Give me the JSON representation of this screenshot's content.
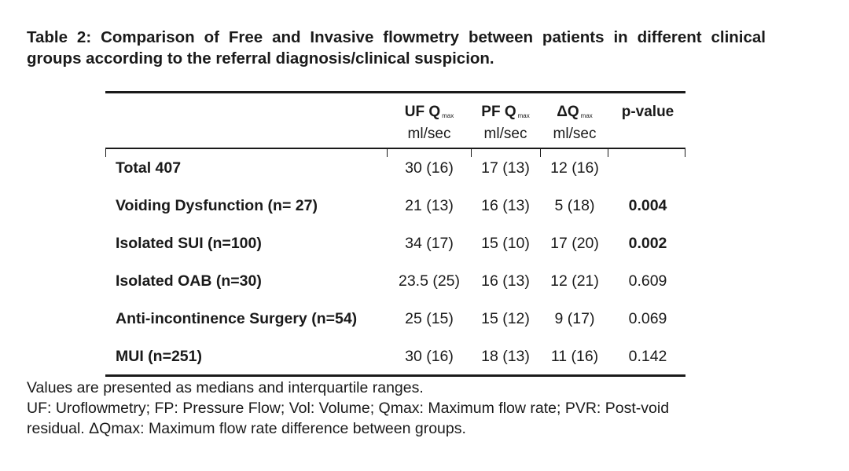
{
  "caption": "Table 2: Comparison of Free and Invasive flowmetry between patients in different clinical groups according to the referral diagnosis/clinical suspicion.",
  "headers": [
    {
      "main": "UF Q",
      "sub": "max",
      "unit": "ml/sec"
    },
    {
      "main": "PF Q",
      "sub": "max",
      "unit": "ml/sec"
    },
    {
      "main": "ΔQ",
      "sub": "max",
      "unit": "ml/sec"
    },
    {
      "main": "p-value",
      "sub": "",
      "unit": ""
    }
  ],
  "rows": [
    {
      "label": "Total 407",
      "uf": "30 (16)",
      "pf": "17 (13)",
      "dq": "12 (16)",
      "p": "",
      "p_bold": false
    },
    {
      "label": "Voiding Dysfunction (n= 27)",
      "uf": "21 (13)",
      "pf": "16 (13)",
      "dq": "5 (18)",
      "p": "0.004",
      "p_bold": true
    },
    {
      "label": "Isolated SUI (n=100)",
      "uf": "34 (17)",
      "pf": "15 (10)",
      "dq": "17 (20)",
      "p": "0.002",
      "p_bold": true
    },
    {
      "label": "Isolated OAB (n=30)",
      "uf": "23.5 (25)",
      "pf": "16 (13)",
      "dq": "12 (21)",
      "p": "0.609",
      "p_bold": false
    },
    {
      "label": "Anti-incontinence Surgery (n=54)",
      "uf": "25 (15)",
      "pf": "15 (12)",
      "dq": "9 (17)",
      "p": "0.069",
      "p_bold": false
    },
    {
      "label": "MUI (n=251)",
      "uf": "30 (16)",
      "pf": "18 (13)",
      "dq": "11 (16)",
      "p": "0.142",
      "p_bold": false
    }
  ],
  "notes": [
    "Values are presented as medians and interquartile ranges.",
    "UF: Uroflowmetry; FP: Pressure Flow; Vol: Volume; Qmax: Maximum flow rate; PVR: Post-void",
    "residual.  ΔQmax: Maximum flow rate difference between groups."
  ]
}
